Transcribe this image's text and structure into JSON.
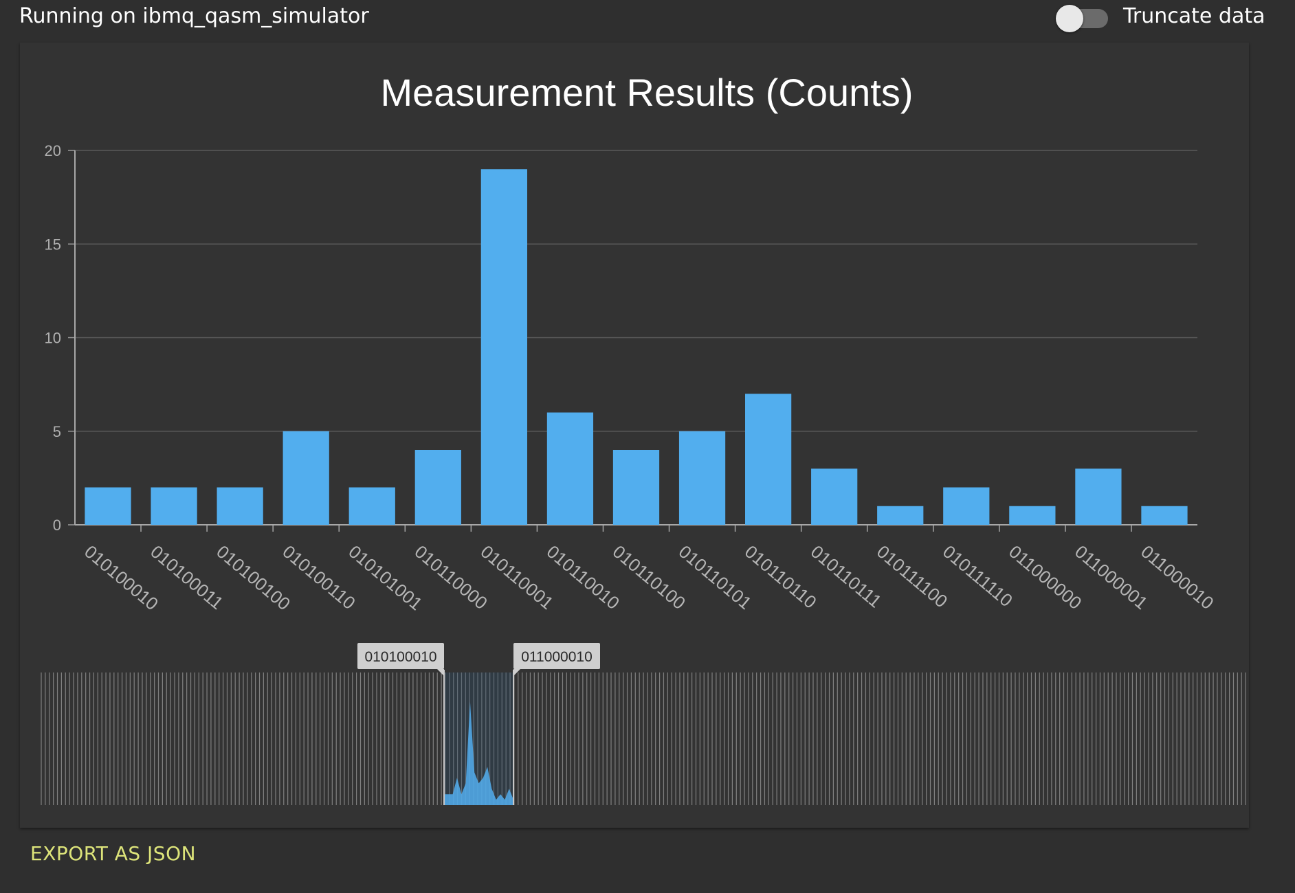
{
  "header": {
    "running_label": "Running on ibmq_qasm_simulator",
    "truncate_label": "Truncate data",
    "truncate_enabled": false
  },
  "footer": {
    "export_label": "EXPORT AS JSON"
  },
  "colors": {
    "bar": "#52aeee",
    "background": "#2f2f2f",
    "card": "#333333",
    "grid": "#5a5a5a",
    "export": "#dde47a"
  },
  "chart_data": {
    "type": "bar",
    "title": "Measurement Results (Counts)",
    "xlabel": "",
    "ylabel": "",
    "ylim": [
      0,
      20
    ],
    "yticks": [
      0,
      5,
      10,
      15,
      20
    ],
    "grid": true,
    "categories": [
      "010100010",
      "010100011",
      "010100100",
      "010100110",
      "010101001",
      "010110000",
      "010110001",
      "010110010",
      "010110100",
      "010110101",
      "010110110",
      "010110111",
      "010111100",
      "010111110",
      "011000000",
      "011000001",
      "011000010"
    ],
    "values": [
      2,
      2,
      2,
      5,
      2,
      4,
      19,
      6,
      4,
      5,
      7,
      3,
      1,
      2,
      1,
      3,
      1
    ],
    "range_selector": {
      "start_label": "010100010",
      "end_label": "011000010"
    }
  }
}
